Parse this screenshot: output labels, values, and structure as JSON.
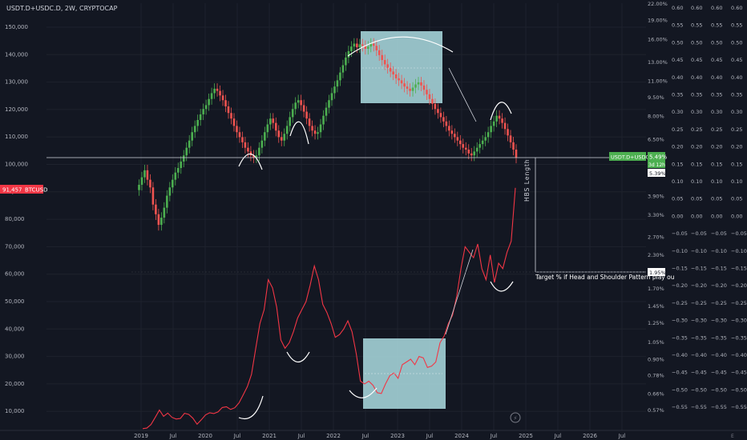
{
  "header": {
    "title": "USDT.D+USDC.D, 2W, CRYPTOCAP"
  },
  "colors": {
    "background": "#131722",
    "grid": "#1e222d",
    "up": "#26a69a",
    "down": "#ef5350",
    "green_candle": "#4caf50",
    "red_line": "#f23645",
    "box": "#a7d7dc"
  },
  "chart_data": {
    "type": "line",
    "title": "USDT.D+USDC.D, 2W, CRYPTOCAP",
    "x_ticks": [
      "2019",
      "Jul",
      "2020",
      "Jul",
      "2021",
      "Jul",
      "2022",
      "Jul",
      "2023",
      "Jul",
      "2024",
      "Jul",
      "2025",
      "Jul",
      "2026",
      "Jul"
    ],
    "left_axis": {
      "ticks": [
        "150,000",
        "140,000",
        "130,000",
        "120,000",
        "110,000",
        "100,000",
        "90,000",
        "80,000",
        "70,000",
        "60,000",
        "50,000",
        "40,000",
        "30,000",
        "20,000",
        "10,000"
      ],
      "price_tag": "91,457",
      "price_tag_label": "BTCUSD"
    },
    "right_axis_pct": {
      "ticks": [
        "22.00%",
        "19.00%",
        "16.00%",
        "13.00%",
        "11.00%",
        "9.50%",
        "8.00%",
        "6.50%",
        "5.39%",
        "3.90%",
        "3.30%",
        "2.70%",
        "2.30%",
        "1.95%",
        "1.70%",
        "1.45%",
        "1.25%",
        "1.05%",
        "0.90%",
        "0.78%",
        "0.66%",
        "0.57%"
      ],
      "scale": "log"
    },
    "right_axis_cols": {
      "ticks": [
        "0.60",
        "0.55",
        "0.50",
        "0.45",
        "0.40",
        "0.35",
        "0.30",
        "0.25",
        "0.20",
        "0.15",
        "0.10",
        "0.05",
        "0.00",
        "−0.05",
        "−0.10",
        "−0.15",
        "−0.20",
        "−0.25",
        "−0.30",
        "−0.35",
        "−0.40",
        "−0.45",
        "−0.50",
        "−0.55"
      ],
      "columns": 4
    },
    "usdt_tag": {
      "label": "USDT.D+USDC.D",
      "value": "5.49%",
      "countdown": "3d 12h",
      "level": "5.39%"
    },
    "target_tag": "1.95%",
    "annotations": {
      "target": "Target % if Head and Shoulder Pattern play ou",
      "hbs": "HBS Length"
    },
    "series": [
      {
        "name": "USDT.D+USDC.D",
        "style": "candles",
        "values": [
          4.1,
          4.3,
          4.6,
          4.9,
          4.5,
          4.2,
          3.6,
          3.3,
          3.0,
          3.2,
          3.5,
          3.9,
          4.2,
          4.5,
          4.8,
          5.0,
          5.3,
          5.6,
          6.0,
          6.4,
          6.9,
          7.3,
          7.7,
          8.1,
          8.5,
          8.8,
          9.3,
          9.8,
          10.2,
          10.0,
          9.6,
          9.2,
          8.7,
          8.2,
          7.8,
          7.3,
          6.9,
          6.6,
          6.3,
          6.0,
          5.8,
          5.6,
          5.5,
          5.6,
          6.0,
          6.4,
          6.9,
          7.4,
          7.8,
          7.5,
          7.0,
          6.6,
          6.4,
          6.8,
          7.3,
          7.9,
          8.5,
          9.0,
          9.2,
          8.8,
          8.3,
          7.8,
          7.3,
          7.0,
          6.8,
          6.9,
          7.4,
          8.0,
          8.6,
          9.2,
          9.8,
          10.4,
          11.0,
          11.8,
          12.6,
          13.5,
          14.3,
          14.9,
          15.3,
          14.8,
          15.2,
          15.0,
          14.6,
          14.9,
          15.3,
          15.0,
          14.4,
          13.8,
          13.2,
          12.7,
          12.3,
          11.9,
          11.6,
          11.2,
          11.0,
          10.7,
          10.4,
          10.2,
          10.0,
          10.3,
          10.6,
          10.8,
          10.5,
          10.1,
          9.7,
          9.3,
          8.9,
          8.5,
          8.2,
          7.9,
          7.6,
          7.3,
          7.0,
          6.8,
          6.6,
          6.4,
          6.2,
          6.0,
          5.9,
          5.7,
          5.6,
          5.8,
          6.0,
          6.2,
          6.4,
          6.6,
          6.9,
          7.3,
          7.6,
          8.0,
          7.8,
          7.5,
          7.1,
          6.7,
          6.3,
          5.9,
          5.49
        ]
      },
      {
        "name": "BTCUSD",
        "style": "line",
        "values": [
          3700,
          3900,
          5200,
          7800,
          10500,
          8200,
          9400,
          7800,
          7200,
          7400,
          9300,
          8900,
          7500,
          5300,
          6900,
          8700,
          9500,
          9200,
          9800,
          11400,
          11700,
          10700,
          11300,
          13100,
          16000,
          19000,
          23500,
          33000,
          42000,
          47000,
          58000,
          55000,
          48000,
          36000,
          33000,
          35000,
          39000,
          44000,
          47000,
          50000,
          56000,
          63000,
          58000,
          49000,
          46000,
          42000,
          37000,
          38000,
          40000,
          43000,
          39000,
          31000,
          21000,
          20000,
          21000,
          19500,
          16800,
          16500,
          20000,
          23000,
          24000,
          22000,
          27000,
          28000,
          29000,
          27000,
          30000,
          29500,
          26000,
          26500,
          28000,
          35000,
          37500,
          42000,
          45000,
          52000,
          62000,
          70000,
          68000,
          66000,
          71000,
          62000,
          58000,
          67000,
          57000,
          64000,
          62000,
          68000,
          72000,
          91457
        ]
      }
    ],
    "shapes": {
      "top_box": "rectangle",
      "bottom_box": "rectangle",
      "arcs": "head-and-shoulders"
    }
  }
}
